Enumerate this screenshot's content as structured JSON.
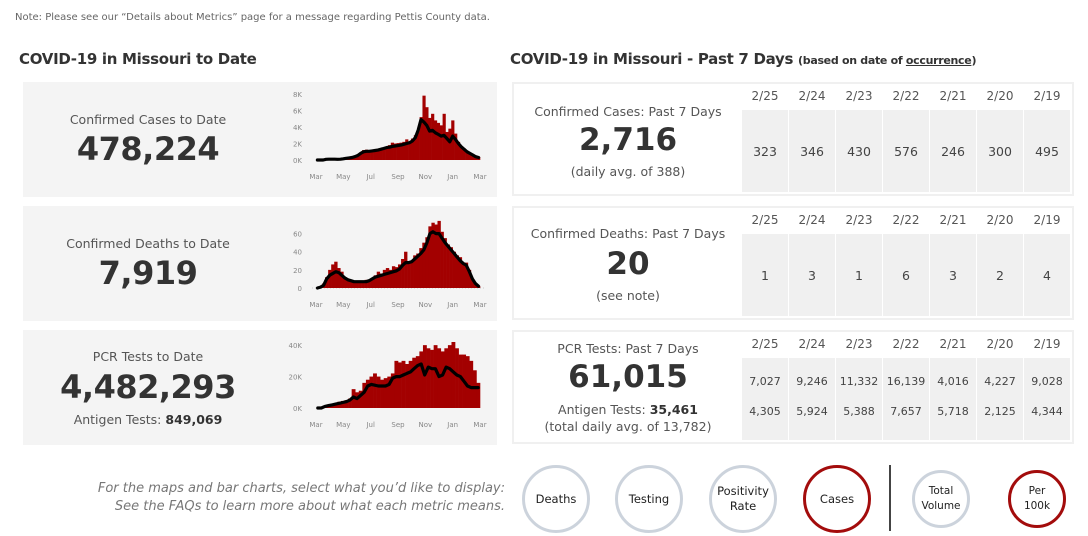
{
  "note": "Note: Please see our “Details about Metrics” page for a message regarding Pettis County data.",
  "left_title": "COVID-19 in Missouri to Date",
  "right_title": "COVID-19 in Missouri - Past 7 Days",
  "right_title_small_prefix": "(based on date of ",
  "right_title_small_link": "occurrence",
  "right_title_small_suffix": ")",
  "to_date": {
    "cases": {
      "label": "Confirmed Cases to Date",
      "value": "478,224"
    },
    "deaths": {
      "label": "Confirmed Deaths to Date",
      "value": "7,919"
    },
    "tests": {
      "label": "PCR Tests to Date",
      "value": "4,482,293",
      "antigen_label": "Antigen Tests: ",
      "antigen_value": "849,069"
    }
  },
  "past7": {
    "dates": [
      "2/25",
      "2/24",
      "2/23",
      "2/22",
      "2/21",
      "2/20",
      "2/19"
    ],
    "cases": {
      "label": "Confirmed Cases: Past 7 Days",
      "value": "2,716",
      "sub": "(daily avg. of 388)",
      "daily": [
        "323",
        "346",
        "430",
        "576",
        "246",
        "300",
        "495"
      ]
    },
    "deaths": {
      "label": "Confirmed Deaths: Past 7 Days",
      "value": "20",
      "sub": "(see note)",
      "daily": [
        "1",
        "3",
        "1",
        "6",
        "3",
        "2",
        "4"
      ]
    },
    "tests": {
      "label": "PCR Tests: Past 7 Days",
      "value": "61,015",
      "antigen_label": "Antigen Tests: ",
      "antigen_value": "35,461",
      "sub": "(total daily avg. of 13,782)",
      "daily_pcr": [
        "7,027",
        "9,246",
        "11,332",
        "16,139",
        "4,016",
        "4,227",
        "9,028"
      ],
      "daily_antigen": [
        "4,305",
        "5,924",
        "5,388",
        "7,657",
        "5,718",
        "2,125",
        "4,344"
      ]
    }
  },
  "selector": {
    "hint_line1": "For the maps and bar charts, select what you’d like to display:",
    "hint_line2": "See the FAQs to learn more about what each metric means.",
    "metrics": [
      {
        "label": "Deaths",
        "selected": false
      },
      {
        "label": "Testing",
        "selected": false
      },
      {
        "label": "Positivity Rate",
        "selected": false
      },
      {
        "label": "Cases",
        "selected": true
      }
    ],
    "scales": [
      {
        "label": "Total Volume",
        "selected": false
      },
      {
        "label": "Per 100k",
        "selected": true
      }
    ]
  },
  "colors": {
    "bar": "#a30000",
    "line": "#000000",
    "selected": "#a30c0c",
    "unselected": "#ccd3dc"
  },
  "chart_data": [
    {
      "type": "bar",
      "title": "Confirmed Cases",
      "x_ticks": [
        "Mar",
        "May",
        "Jul",
        "Sep",
        "Nov",
        "Jan",
        "Mar"
      ],
      "y_ticks": [
        "0K",
        "2K",
        "4K",
        "6K",
        "8K"
      ],
      "ylim": [
        0,
        8000
      ],
      "series": [
        {
          "name": "daily",
          "values": [
            0,
            0,
            0,
            100,
            150,
            200,
            150,
            150,
            100,
            200,
            150,
            200,
            250,
            400,
            600,
            900,
            1200,
            1250,
            1150,
            1200,
            1250,
            1350,
            1400,
            1500,
            1600,
            1800,
            2100,
            2000,
            2050,
            2100,
            2200,
            2500,
            2200,
            2600,
            3000,
            3500,
            5200,
            7800,
            6400,
            5100,
            5600,
            4800,
            4500,
            4200,
            5600,
            3400,
            3800,
            4800,
            3200,
            2200,
            1700,
            1400,
            1100,
            800,
            600,
            400,
            350
          ],
          "moving_avg": [
            0,
            0,
            0,
            80,
            100,
            100,
            100,
            90,
            100,
            150,
            200,
            250,
            300,
            400,
            550,
            800,
            1000,
            1050,
            1050,
            1100,
            1150,
            1200,
            1300,
            1400,
            1500,
            1550,
            1650,
            1700,
            1750,
            1800,
            1900,
            2000,
            2100,
            2300,
            2700,
            3600,
            4900,
            4600,
            4200,
            3500,
            3600,
            3300,
            3100,
            2900,
            3000,
            2600,
            2200,
            2900,
            2500,
            2000,
            1600,
            1300,
            1000,
            800,
            600,
            400,
            300
          ]
        }
      ]
    },
    {
      "type": "bar",
      "title": "Confirmed Deaths",
      "x_ticks": [
        "Mar",
        "May",
        "Jul",
        "Sep",
        "Nov",
        "Jan",
        "Mar"
      ],
      "y_ticks": [
        "0",
        "20",
        "40",
        "60"
      ],
      "ylim": [
        0,
        75
      ],
      "series": [
        {
          "name": "daily",
          "values": [
            0,
            2,
            5,
            12,
            20,
            26,
            29,
            22,
            18,
            12,
            10,
            9,
            8,
            8,
            7,
            8,
            9,
            8,
            10,
            14,
            18,
            16,
            20,
            22,
            20,
            24,
            23,
            26,
            32,
            40,
            28,
            30,
            36,
            38,
            44,
            50,
            56,
            68,
            72,
            70,
            74,
            62,
            55,
            48,
            45,
            40,
            36,
            34,
            28,
            28,
            20,
            10,
            4,
            2
          ],
          "moving_avg": [
            0,
            1,
            3,
            10,
            14,
            16,
            18,
            17,
            14,
            11,
            9,
            8,
            7,
            7,
            7,
            7,
            7,
            8,
            10,
            12,
            13,
            14,
            15,
            16,
            17,
            18,
            19,
            21,
            25,
            28,
            28,
            29,
            32,
            35,
            38,
            42,
            50,
            60,
            62,
            60,
            60,
            55,
            50,
            46,
            42,
            38,
            34,
            30,
            27,
            25,
            18,
            10,
            5,
            2
          ]
        }
      ]
    },
    {
      "type": "bar",
      "title": "PCR Tests",
      "x_ticks": [
        "Mar",
        "May",
        "Jul",
        "Sep",
        "Nov",
        "Jan",
        "Mar"
      ],
      "y_ticks": [
        "0K",
        "20K",
        "40K"
      ],
      "ylim": [
        0,
        42000
      ],
      "series": [
        {
          "name": "daily",
          "values": [
            0,
            0,
            1000,
            2000,
            2500,
            3000,
            4000,
            4500,
            5000,
            6000,
            12000,
            10000,
            11000,
            16000,
            18000,
            20000,
            22000,
            20000,
            18000,
            19000,
            20000,
            22000,
            30000,
            29000,
            30000,
            28000,
            30000,
            32000,
            33000,
            36000,
            40000,
            38000,
            37000,
            40000,
            38000,
            36000,
            38000,
            40000,
            42000,
            38000,
            34000,
            34000,
            33000,
            30000,
            24000,
            16000
          ],
          "moving_avg": [
            0,
            0,
            1000,
            1500,
            2000,
            2500,
            3000,
            3500,
            4000,
            5000,
            7000,
            6000,
            8000,
            10000,
            14000,
            15000,
            14500,
            14000,
            14000,
            14000,
            15000,
            19000,
            20000,
            20000,
            21000,
            22000,
            23000,
            25000,
            27000,
            28000,
            21000,
            26000,
            25000,
            25000,
            20000,
            21000,
            26000,
            25000,
            23000,
            21000,
            20000,
            17000,
            14000,
            13000,
            13000,
            13000
          ]
        }
      ]
    }
  ]
}
